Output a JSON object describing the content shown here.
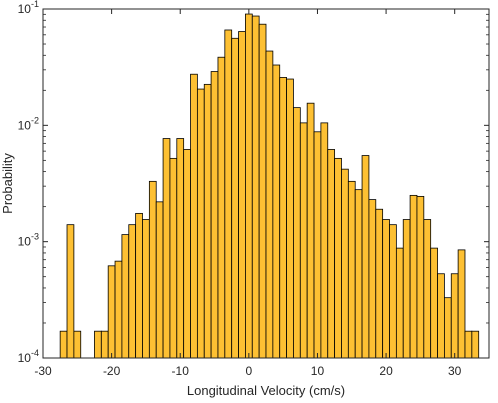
{
  "chart_data": {
    "type": "bar",
    "xlabel": "Longitudinal Velocity (cm/s)",
    "ylabel": "Probability",
    "xlim": [
      -30,
      35
    ],
    "ylim": [
      0.0001,
      0.1
    ],
    "yscale": "log",
    "grid": false,
    "bar_color": "#FDC033",
    "bar_edge_color": "#000000",
    "bin_width": 1,
    "x_ticks": [
      {
        "value": -30,
        "label": "-30"
      },
      {
        "value": -20,
        "label": "-20"
      },
      {
        "value": -10,
        "label": "-10"
      },
      {
        "value": 0,
        "label": "0"
      },
      {
        "value": 10,
        "label": "10"
      },
      {
        "value": 20,
        "label": "20"
      },
      {
        "value": 30,
        "label": "30"
      }
    ],
    "y_ticks": [
      {
        "value": 0.0001,
        "base": "10",
        "exp": "-4"
      },
      {
        "value": 0.001,
        "base": "10",
        "exp": "-3"
      },
      {
        "value": 0.01,
        "base": "10",
        "exp": "-2"
      },
      {
        "value": 0.1,
        "base": "10",
        "exp": "-1"
      }
    ],
    "bins": [
      {
        "x": -27,
        "y": 0.00017
      },
      {
        "x": -26,
        "y": 0.0014
      },
      {
        "x": -25,
        "y": 0.00017
      },
      {
        "x": -22,
        "y": 0.00017
      },
      {
        "x": -21,
        "y": 0.00017
      },
      {
        "x": -20,
        "y": 0.00062
      },
      {
        "x": -19,
        "y": 0.00068
      },
      {
        "x": -18,
        "y": 0.00115
      },
      {
        "x": -17,
        "y": 0.0014
      },
      {
        "x": -16,
        "y": 0.00175
      },
      {
        "x": -15,
        "y": 0.00155
      },
      {
        "x": -14,
        "y": 0.0033
      },
      {
        "x": -13,
        "y": 0.0022
      },
      {
        "x": -12,
        "y": 0.0077
      },
      {
        "x": -11,
        "y": 0.0052
      },
      {
        "x": -10,
        "y": 0.0077
      },
      {
        "x": -9,
        "y": 0.0062
      },
      {
        "x": -8,
        "y": 0.0275
      },
      {
        "x": -7,
        "y": 0.0205
      },
      {
        "x": -6,
        "y": 0.0225
      },
      {
        "x": -5,
        "y": 0.029
      },
      {
        "x": -4,
        "y": 0.0385
      },
      {
        "x": -3,
        "y": 0.066
      },
      {
        "x": -2,
        "y": 0.056
      },
      {
        "x": -1,
        "y": 0.064
      },
      {
        "x": 0,
        "y": 0.0905
      },
      {
        "x": 1,
        "y": 0.087
      },
      {
        "x": 2,
        "y": 0.074
      },
      {
        "x": 3,
        "y": 0.0435
      },
      {
        "x": 4,
        "y": 0.033
      },
      {
        "x": 5,
        "y": 0.0258
      },
      {
        "x": 6,
        "y": 0.025
      },
      {
        "x": 7,
        "y": 0.0142
      },
      {
        "x": 8,
        "y": 0.0105
      },
      {
        "x": 9,
        "y": 0.0155
      },
      {
        "x": 10,
        "y": 0.0088
      },
      {
        "x": 11,
        "y": 0.0105
      },
      {
        "x": 12,
        "y": 0.0062
      },
      {
        "x": 13,
        "y": 0.0052
      },
      {
        "x": 14,
        "y": 0.0042
      },
      {
        "x": 15,
        "y": 0.0033
      },
      {
        "x": 16,
        "y": 0.0028
      },
      {
        "x": 17,
        "y": 0.0055
      },
      {
        "x": 18,
        "y": 0.0023
      },
      {
        "x": 19,
        "y": 0.0019
      },
      {
        "x": 20,
        "y": 0.00155
      },
      {
        "x": 21,
        "y": 0.0014
      },
      {
        "x": 22,
        "y": 0.00088
      },
      {
        "x": 23,
        "y": 0.00155
      },
      {
        "x": 24,
        "y": 0.0025
      },
      {
        "x": 25,
        "y": 0.00245
      },
      {
        "x": 26,
        "y": 0.00155
      },
      {
        "x": 27,
        "y": 0.00088
      },
      {
        "x": 28,
        "y": 0.00053
      },
      {
        "x": 29,
        "y": 0.00033
      },
      {
        "x": 30,
        "y": 0.00053
      },
      {
        "x": 31,
        "y": 0.00085
      },
      {
        "x": 32,
        "y": 0.00017
      },
      {
        "x": 33,
        "y": 0.00017
      }
    ]
  }
}
